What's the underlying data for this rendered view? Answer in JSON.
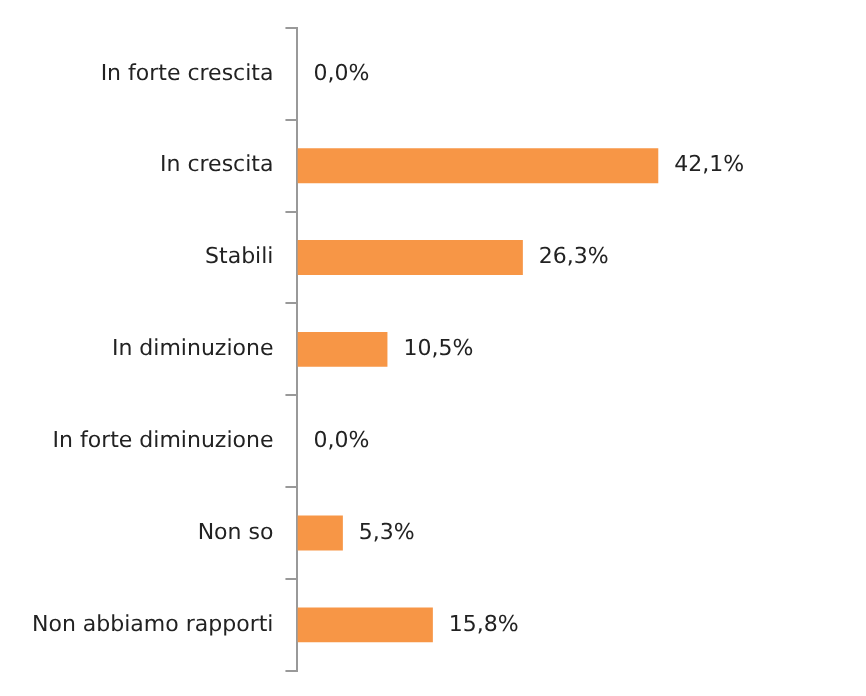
{
  "chart_data": {
    "type": "bar",
    "orientation": "horizontal",
    "categories": [
      "In forte crescita",
      "In crescita",
      "Stabili",
      "In diminuzione",
      "In forte diminuzione",
      "Non so",
      "Non abbiamo rapporti"
    ],
    "values": [
      0.0,
      42.1,
      26.3,
      10.5,
      0.0,
      5.3,
      15.8
    ],
    "value_labels": [
      "0,0%",
      "42,1%",
      "26,3%",
      "10,5%",
      "0,0%",
      "5,3%",
      "15,8%"
    ],
    "color": "#f79646",
    "grid": false,
    "legend": false
  }
}
